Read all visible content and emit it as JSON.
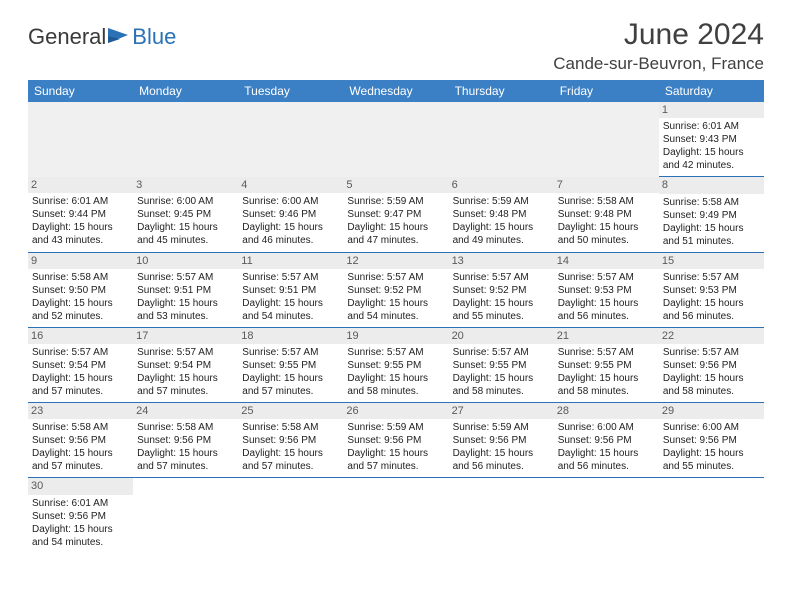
{
  "brand": {
    "part1": "General",
    "part2": "Blue"
  },
  "title": "June 2024",
  "location": "Cande-sur-Beuvron, France",
  "colors": {
    "header_bg": "#3b7fc4",
    "header_text": "#ffffff",
    "border": "#2a72b5",
    "daynum_bg": "#ececec",
    "daynum_text": "#5a5a5a",
    "body_text": "#222222",
    "title_text": "#404040",
    "blank_row_bg": "#f0f0f0"
  },
  "typography": {
    "title_fontsize": 30,
    "location_fontsize": 17,
    "header_fontsize": 12,
    "cell_fontsize": 10,
    "daynum_fontsize": 11
  },
  "day_headers": [
    "Sunday",
    "Monday",
    "Tuesday",
    "Wednesday",
    "Thursday",
    "Friday",
    "Saturday"
  ],
  "weeks": [
    [
      null,
      null,
      null,
      null,
      null,
      null,
      {
        "n": "1",
        "sunrise": "Sunrise: 6:01 AM",
        "sunset": "Sunset: 9:43 PM",
        "daylight": "Daylight: 15 hours and 42 minutes."
      }
    ],
    [
      {
        "n": "2",
        "sunrise": "Sunrise: 6:01 AM",
        "sunset": "Sunset: 9:44 PM",
        "daylight": "Daylight: 15 hours and 43 minutes."
      },
      {
        "n": "3",
        "sunrise": "Sunrise: 6:00 AM",
        "sunset": "Sunset: 9:45 PM",
        "daylight": "Daylight: 15 hours and 45 minutes."
      },
      {
        "n": "4",
        "sunrise": "Sunrise: 6:00 AM",
        "sunset": "Sunset: 9:46 PM",
        "daylight": "Daylight: 15 hours and 46 minutes."
      },
      {
        "n": "5",
        "sunrise": "Sunrise: 5:59 AM",
        "sunset": "Sunset: 9:47 PM",
        "daylight": "Daylight: 15 hours and 47 minutes."
      },
      {
        "n": "6",
        "sunrise": "Sunrise: 5:59 AM",
        "sunset": "Sunset: 9:48 PM",
        "daylight": "Daylight: 15 hours and 49 minutes."
      },
      {
        "n": "7",
        "sunrise": "Sunrise: 5:58 AM",
        "sunset": "Sunset: 9:48 PM",
        "daylight": "Daylight: 15 hours and 50 minutes."
      },
      {
        "n": "8",
        "sunrise": "Sunrise: 5:58 AM",
        "sunset": "Sunset: 9:49 PM",
        "daylight": "Daylight: 15 hours and 51 minutes."
      }
    ],
    [
      {
        "n": "9",
        "sunrise": "Sunrise: 5:58 AM",
        "sunset": "Sunset: 9:50 PM",
        "daylight": "Daylight: 15 hours and 52 minutes."
      },
      {
        "n": "10",
        "sunrise": "Sunrise: 5:57 AM",
        "sunset": "Sunset: 9:51 PM",
        "daylight": "Daylight: 15 hours and 53 minutes."
      },
      {
        "n": "11",
        "sunrise": "Sunrise: 5:57 AM",
        "sunset": "Sunset: 9:51 PM",
        "daylight": "Daylight: 15 hours and 54 minutes."
      },
      {
        "n": "12",
        "sunrise": "Sunrise: 5:57 AM",
        "sunset": "Sunset: 9:52 PM",
        "daylight": "Daylight: 15 hours and 54 minutes."
      },
      {
        "n": "13",
        "sunrise": "Sunrise: 5:57 AM",
        "sunset": "Sunset: 9:52 PM",
        "daylight": "Daylight: 15 hours and 55 minutes."
      },
      {
        "n": "14",
        "sunrise": "Sunrise: 5:57 AM",
        "sunset": "Sunset: 9:53 PM",
        "daylight": "Daylight: 15 hours and 56 minutes."
      },
      {
        "n": "15",
        "sunrise": "Sunrise: 5:57 AM",
        "sunset": "Sunset: 9:53 PM",
        "daylight": "Daylight: 15 hours and 56 minutes."
      }
    ],
    [
      {
        "n": "16",
        "sunrise": "Sunrise: 5:57 AM",
        "sunset": "Sunset: 9:54 PM",
        "daylight": "Daylight: 15 hours and 57 minutes."
      },
      {
        "n": "17",
        "sunrise": "Sunrise: 5:57 AM",
        "sunset": "Sunset: 9:54 PM",
        "daylight": "Daylight: 15 hours and 57 minutes."
      },
      {
        "n": "18",
        "sunrise": "Sunrise: 5:57 AM",
        "sunset": "Sunset: 9:55 PM",
        "daylight": "Daylight: 15 hours and 57 minutes."
      },
      {
        "n": "19",
        "sunrise": "Sunrise: 5:57 AM",
        "sunset": "Sunset: 9:55 PM",
        "daylight": "Daylight: 15 hours and 58 minutes."
      },
      {
        "n": "20",
        "sunrise": "Sunrise: 5:57 AM",
        "sunset": "Sunset: 9:55 PM",
        "daylight": "Daylight: 15 hours and 58 minutes."
      },
      {
        "n": "21",
        "sunrise": "Sunrise: 5:57 AM",
        "sunset": "Sunset: 9:55 PM",
        "daylight": "Daylight: 15 hours and 58 minutes."
      },
      {
        "n": "22",
        "sunrise": "Sunrise: 5:57 AM",
        "sunset": "Sunset: 9:56 PM",
        "daylight": "Daylight: 15 hours and 58 minutes."
      }
    ],
    [
      {
        "n": "23",
        "sunrise": "Sunrise: 5:58 AM",
        "sunset": "Sunset: 9:56 PM",
        "daylight": "Daylight: 15 hours and 57 minutes."
      },
      {
        "n": "24",
        "sunrise": "Sunrise: 5:58 AM",
        "sunset": "Sunset: 9:56 PM",
        "daylight": "Daylight: 15 hours and 57 minutes."
      },
      {
        "n": "25",
        "sunrise": "Sunrise: 5:58 AM",
        "sunset": "Sunset: 9:56 PM",
        "daylight": "Daylight: 15 hours and 57 minutes."
      },
      {
        "n": "26",
        "sunrise": "Sunrise: 5:59 AM",
        "sunset": "Sunset: 9:56 PM",
        "daylight": "Daylight: 15 hours and 57 minutes."
      },
      {
        "n": "27",
        "sunrise": "Sunrise: 5:59 AM",
        "sunset": "Sunset: 9:56 PM",
        "daylight": "Daylight: 15 hours and 56 minutes."
      },
      {
        "n": "28",
        "sunrise": "Sunrise: 6:00 AM",
        "sunset": "Sunset: 9:56 PM",
        "daylight": "Daylight: 15 hours and 56 minutes."
      },
      {
        "n": "29",
        "sunrise": "Sunrise: 6:00 AM",
        "sunset": "Sunset: 9:56 PM",
        "daylight": "Daylight: 15 hours and 55 minutes."
      }
    ],
    [
      {
        "n": "30",
        "sunrise": "Sunrise: 6:01 AM",
        "sunset": "Sunset: 9:56 PM",
        "daylight": "Daylight: 15 hours and 54 minutes."
      },
      null,
      null,
      null,
      null,
      null,
      null
    ]
  ]
}
